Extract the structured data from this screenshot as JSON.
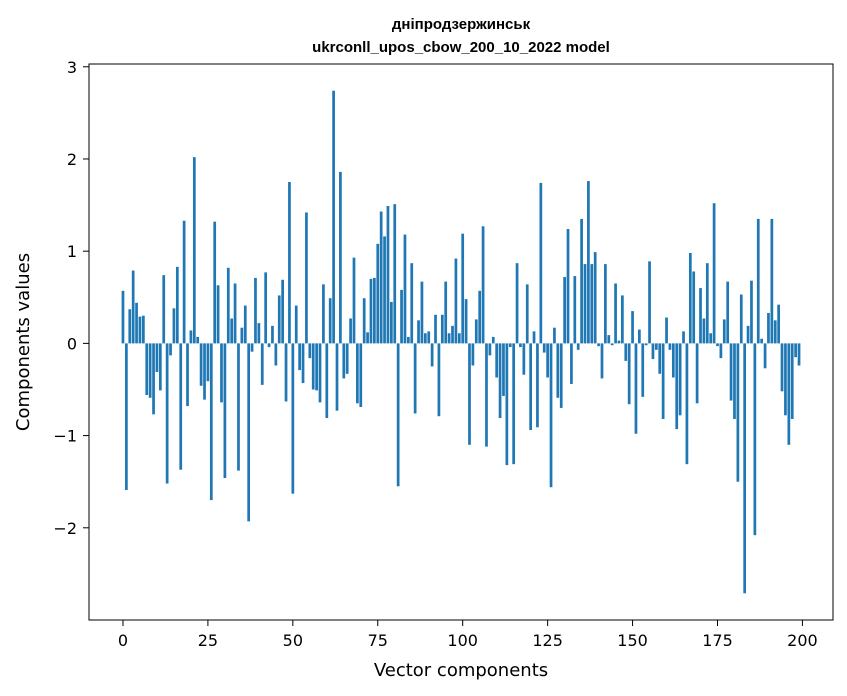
{
  "chart_data": {
    "type": "bar",
    "title": "дніпродзержинськ",
    "subtitle": "ukrconll_upos_cbow_200_10_2022 model",
    "xlabel": "Vector components",
    "ylabel": "Components values",
    "xlim": [
      -10,
      209
    ],
    "ylim": [
      -3.0,
      3.03
    ],
    "xticks": [
      0,
      25,
      50,
      75,
      100,
      125,
      150,
      175,
      200
    ],
    "yticks": [
      -2,
      -1,
      0,
      1,
      2,
      3
    ],
    "xtick_labels": [
      "0",
      "25",
      "50",
      "75",
      "100",
      "125",
      "150",
      "175",
      "200"
    ],
    "ytick_labels": [
      "−2",
      "−1",
      "0",
      "1",
      "2",
      "3"
    ],
    "color": "#1f77b4",
    "grid": false,
    "values": [
      0.57,
      -1.59,
      0.37,
      0.79,
      0.44,
      0.29,
      0.3,
      -0.56,
      -0.59,
      -0.77,
      -0.31,
      -0.51,
      0.74,
      -1.52,
      -0.13,
      0.38,
      0.83,
      -1.37,
      1.33,
      -0.68,
      0.14,
      2.02,
      0.07,
      -0.46,
      -0.61,
      -0.41,
      -1.7,
      1.32,
      0.63,
      -0.64,
      -1.46,
      0.82,
      0.27,
      0.65,
      -1.38,
      0.17,
      0.41,
      -1.93,
      -0.09,
      0.71,
      0.22,
      -0.45,
      0.77,
      -0.04,
      0.19,
      -0.24,
      0.52,
      0.69,
      -0.63,
      1.75,
      -1.63,
      0.41,
      -0.29,
      -0.43,
      1.42,
      -0.16,
      -0.5,
      -0.51,
      -0.64,
      0.64,
      -0.81,
      0.49,
      2.74,
      -0.73,
      1.86,
      -0.38,
      -0.33,
      0.27,
      0.93,
      -0.65,
      -0.69,
      0.49,
      0.12,
      0.7,
      0.71,
      1.08,
      1.43,
      1.16,
      1.49,
      0.45,
      1.51,
      -1.55,
      0.58,
      1.18,
      0.07,
      0.87,
      -0.76,
      0.25,
      0.67,
      0.11,
      0.13,
      -0.25,
      0.31,
      -0.79,
      0.31,
      0.67,
      0.11,
      0.19,
      0.92,
      0.11,
      1.19,
      0.48,
      -1.1,
      -0.24,
      0.26,
      0.57,
      1.27,
      -1.12,
      -0.13,
      0.07,
      -0.37,
      -0.81,
      -0.57,
      -1.32,
      -0.04,
      -1.31,
      0.87,
      -0.04,
      -0.34,
      0.64,
      -0.94,
      0.13,
      -0.91,
      1.74,
      -0.1,
      -0.37,
      -1.56,
      0.17,
      -0.59,
      -0.7,
      0.72,
      1.24,
      -0.44,
      0.73,
      -0.07,
      1.35,
      0.86,
      1.76,
      0.86,
      0.99,
      -0.03,
      -0.38,
      0.86,
      0.09,
      -0.02,
      0.65,
      0.03,
      0.52,
      -0.19,
      -0.66,
      0.35,
      -0.98,
      0.15,
      -0.58,
      -0.02,
      0.89,
      -0.17,
      -0.07,
      -0.33,
      -0.82,
      0.28,
      -0.07,
      -0.37,
      -0.93,
      -0.78,
      0.13,
      -1.31,
      0.98,
      0.78,
      -0.65,
      0.6,
      0.27,
      0.87,
      0.11,
      1.52,
      -0.03,
      -0.16,
      0.26,
      0.67,
      -0.62,
      -0.82,
      -1.5,
      0.53,
      -2.71,
      0.19,
      0.68,
      -2.08,
      1.35,
      0.05,
      -0.27,
      0.33,
      1.35,
      0.25,
      0.42,
      -0.52,
      -0.78,
      -1.1,
      -0.82,
      -0.15,
      -0.24
    ]
  }
}
